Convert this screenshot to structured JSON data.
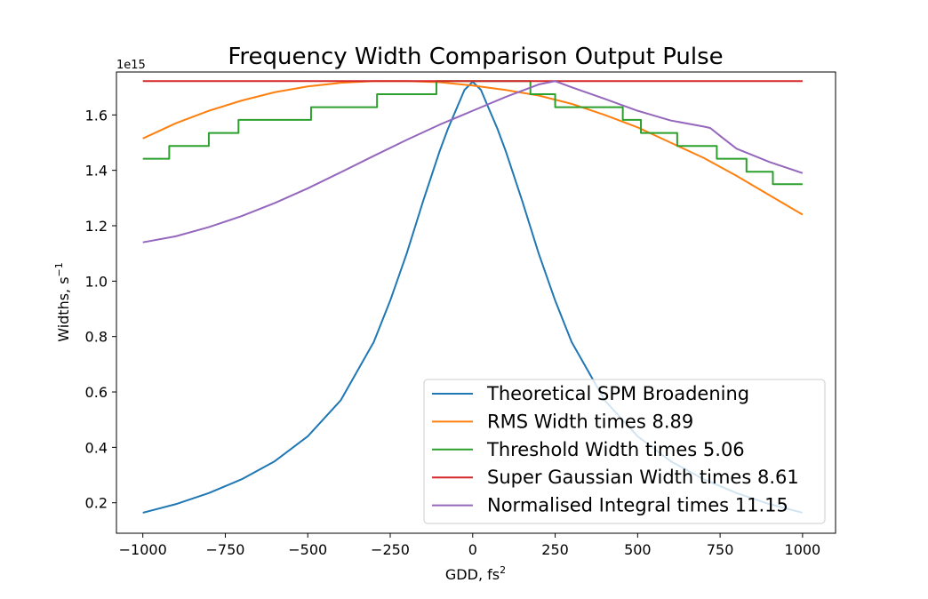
{
  "chart_data": {
    "type": "line",
    "title": "Frequency Width Comparison Output Pulse",
    "xlabel": "GDD, fs",
    "xlabel_sup": "2",
    "ylabel": "Widths, s",
    "ylabel_sup": "−1",
    "y_offset_label": "1e15",
    "xlim": [
      -1080,
      1100
    ],
    "ylim": [
      0.09,
      1.755
    ],
    "x_ticks": [
      -1000,
      -750,
      -500,
      -250,
      0,
      250,
      500,
      750,
      1000
    ],
    "x_tick_labels": [
      "−1000",
      "−750",
      "−500",
      "−250",
      "0",
      "250",
      "500",
      "750",
      "1000"
    ],
    "y_ticks": [
      0.2,
      0.4,
      0.6,
      0.8,
      1.0,
      1.2,
      1.4,
      1.6
    ],
    "y_tick_labels": [
      "0.2",
      "0.4",
      "0.6",
      "0.8",
      "1.0",
      "1.2",
      "1.4",
      "1.6"
    ],
    "grid": false,
    "legend_position": "lower-right",
    "series": [
      {
        "name": "Theoretical SPM Broadening",
        "color": "#1f77b4",
        "x": [
          -1000,
          -900,
          -800,
          -700,
          -600,
          -500,
          -400,
          -300,
          -250,
          -200,
          -150,
          -100,
          -75,
          -50,
          -25,
          0,
          25,
          50,
          75,
          100,
          150,
          200,
          250,
          300,
          400,
          500,
          600,
          700,
          800,
          900,
          1000
        ],
        "y": [
          0.164,
          0.195,
          0.235,
          0.285,
          0.35,
          0.44,
          0.57,
          0.78,
          0.93,
          1.1,
          1.29,
          1.47,
          1.55,
          1.62,
          1.69,
          1.72,
          1.69,
          1.62,
          1.55,
          1.47,
          1.29,
          1.1,
          0.93,
          0.78,
          0.57,
          0.44,
          0.35,
          0.285,
          0.235,
          0.195,
          0.164
        ]
      },
      {
        "name": "RMS Width times 8.89",
        "color": "#ff7f0e",
        "x": [
          -1000,
          -900,
          -800,
          -700,
          -600,
          -500,
          -400,
          -300,
          -200,
          -100,
          0,
          100,
          200,
          300,
          400,
          500,
          600,
          700,
          800,
          900,
          1000
        ],
        "y": [
          1.515,
          1.57,
          1.615,
          1.652,
          1.682,
          1.703,
          1.716,
          1.722,
          1.722,
          1.718,
          1.706,
          1.69,
          1.67,
          1.64,
          1.6,
          1.555,
          1.5,
          1.445,
          1.38,
          1.31,
          1.24
        ]
      },
      {
        "name": "Threshold Width times 5.06",
        "color": "#2ca02c",
        "x": [
          -1000,
          -920,
          -920,
          -830,
          -830,
          -800,
          -800,
          -710,
          -710,
          -490,
          -490,
          -290,
          -290,
          -110,
          -110,
          -95,
          -95,
          175,
          175,
          185,
          185,
          250,
          250,
          265,
          265,
          455,
          455,
          480,
          480,
          510,
          510,
          620,
          620,
          630,
          630,
          730,
          730,
          740,
          740,
          760,
          760,
          830,
          830,
          850,
          850,
          910,
          910,
          930,
          930,
          1000
        ],
        "y": [
          1.442,
          1.442,
          1.488,
          1.488,
          1.488,
          1.488,
          1.535,
          1.535,
          1.582,
          1.582,
          1.628,
          1.628,
          1.675,
          1.675,
          1.722,
          1.722,
          1.722,
          1.722,
          1.675,
          1.675,
          1.675,
          1.675,
          1.628,
          1.628,
          1.628,
          1.628,
          1.582,
          1.582,
          1.582,
          1.582,
          1.535,
          1.535,
          1.488,
          1.488,
          1.488,
          1.488,
          1.488,
          1.488,
          1.442,
          1.442,
          1.442,
          1.442,
          1.395,
          1.395,
          1.395,
          1.395,
          1.35,
          1.35,
          1.35,
          1.35
        ]
      },
      {
        "name": "Super Gaussian Width times 8.61",
        "color": "#d62728",
        "x": [
          -1000,
          1000
        ],
        "y": [
          1.722,
          1.722
        ]
      },
      {
        "name": "Normalised Integral times 11.15",
        "color": "#9467bd",
        "x": [
          -1000,
          -900,
          -800,
          -700,
          -600,
          -500,
          -400,
          -300,
          -200,
          -100,
          0,
          100,
          200,
          250,
          300,
          400,
          500,
          600,
          700,
          720,
          760,
          800,
          900,
          1000
        ],
        "y": [
          1.14,
          1.162,
          1.195,
          1.235,
          1.282,
          1.335,
          1.393,
          1.452,
          1.51,
          1.565,
          1.615,
          1.665,
          1.71,
          1.722,
          1.7,
          1.658,
          1.615,
          1.58,
          1.558,
          1.553,
          1.515,
          1.478,
          1.43,
          1.39
        ]
      }
    ]
  }
}
